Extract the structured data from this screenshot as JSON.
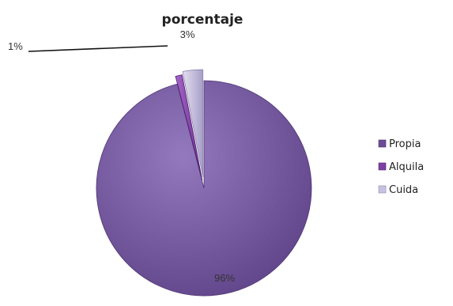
{
  "chart_data": {
    "type": "pie",
    "title": "porcentaje",
    "categories": [
      "Propia",
      "Alquila",
      "Cuida"
    ],
    "values": [
      96,
      1,
      3
    ],
    "data_labels": [
      "96%",
      "1%",
      "3%"
    ],
    "colors": {
      "Propia": "#7B5AA6",
      "Alquila": "#8E4DB0",
      "Cuida": "#C8C2E0"
    },
    "legend_position": "right",
    "exploded": true
  }
}
